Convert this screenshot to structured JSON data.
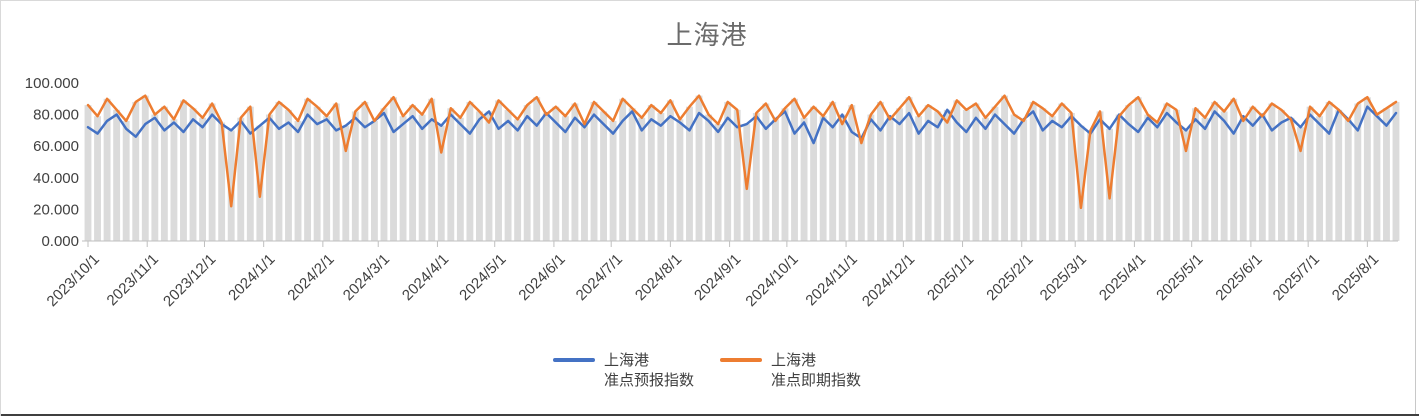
{
  "title": "上海港",
  "colors": {
    "forecast": "#4472C4",
    "spot": "#ED7D31",
    "background_bar": "#DBDBDB",
    "axis": "#BFBFBF",
    "axis_text": "#404040",
    "title_text": "#6b6b6b"
  },
  "legend": {
    "items": [
      {
        "label": "上海港\n准点预报指数",
        "color": "#4472C4"
      },
      {
        "label": "上海港\n准点即期指数",
        "color": "#ED7D31"
      }
    ]
  },
  "y_axis": {
    "tick_labels": [
      "0.000",
      "20.000",
      "40.000",
      "60.000",
      "80.000",
      "100.000"
    ],
    "tick_values": [
      0,
      20,
      40,
      60,
      80,
      100
    ]
  },
  "x_axis": {
    "tick_labels": [
      "2023/10/1",
      "2023/11/1",
      "2023/12/1",
      "2024/1/1",
      "2024/2/1",
      "2024/3/1",
      "2024/4/1",
      "2024/5/1",
      "2024/6/1",
      "2024/7/1",
      "2024/8/1",
      "2024/9/1",
      "2024/10/1",
      "2024/11/1",
      "2024/12/1",
      "2025/1/1",
      "2025/2/1",
      "2025/3/1",
      "2025/4/1",
      "2025/5/1",
      "2025/6/1",
      "2025/7/1",
      "2025/8/1"
    ]
  },
  "chart_data": {
    "type": "line",
    "title": "上海港",
    "xlabel": "",
    "ylabel": "",
    "ylim": [
      0,
      100
    ],
    "grid": "vertical-drop-bars",
    "legend_position": "bottom",
    "x_start_date": "2023/10/1",
    "x_interval_days": 5,
    "point_count": 138,
    "x_tick_labels": [
      "2023/10/1",
      "2023/11/1",
      "2023/12/1",
      "2024/1/1",
      "2024/2/1",
      "2024/3/1",
      "2024/4/1",
      "2024/5/1",
      "2024/6/1",
      "2024/7/1",
      "2024/8/1",
      "2024/9/1",
      "2024/10/1",
      "2024/11/1",
      "2024/12/1",
      "2025/1/1",
      "2025/2/1",
      "2025/3/1",
      "2025/4/1",
      "2025/5/1",
      "2025/6/1",
      "2025/7/1",
      "2025/8/1"
    ],
    "y_tick_labels": [
      "0.000",
      "20.000",
      "40.000",
      "60.000",
      "80.000",
      "100.000"
    ],
    "series": [
      {
        "name": "上海港准点预报指数",
        "color": "#4472C4",
        "values": [
          72,
          68,
          76,
          80,
          71,
          66,
          74,
          78,
          70,
          75,
          69,
          77,
          72,
          80,
          74,
          70,
          76,
          68,
          73,
          78,
          71,
          75,
          69,
          80,
          74,
          77,
          70,
          73,
          78,
          72,
          76,
          81,
          69,
          74,
          79,
          71,
          77,
          73,
          80,
          74,
          68,
          77,
          82,
          71,
          76,
          70,
          79,
          73,
          81,
          75,
          69,
          78,
          72,
          80,
          74,
          68,
          76,
          82,
          70,
          77,
          73,
          79,
          75,
          70,
          81,
          76,
          69,
          78,
          72,
          74,
          79,
          71,
          77,
          82,
          68,
          75,
          62,
          78,
          72,
          80,
          69,
          65,
          77,
          70,
          79,
          74,
          81,
          68,
          76,
          72,
          83,
          75,
          69,
          78,
          71,
          80,
          74,
          68,
          77,
          82,
          70,
          76,
          72,
          79,
          73,
          68,
          77,
          71,
          80,
          74,
          69,
          78,
          72,
          81,
          75,
          70,
          77,
          71,
          82,
          76,
          68,
          79,
          73,
          80,
          70,
          75,
          78,
          72,
          80,
          74,
          68,
          83,
          77,
          70,
          85,
          79,
          73,
          81
        ]
      },
      {
        "name": "上海港准点即期指数",
        "color": "#ED7D31",
        "values": [
          86,
          79,
          90,
          83,
          76,
          88,
          92,
          80,
          85,
          77,
          89,
          84,
          78,
          87,
          75,
          22,
          78,
          85,
          28,
          80,
          88,
          83,
          76,
          90,
          85,
          79,
          87,
          57,
          82,
          88,
          76,
          84,
          91,
          79,
          86,
          80,
          90,
          56,
          84,
          78,
          88,
          82,
          75,
          89,
          83,
          77,
          86,
          91,
          80,
          85,
          79,
          87,
          74,
          88,
          82,
          76,
          90,
          84,
          78,
          86,
          81,
          89,
          77,
          85,
          92,
          80,
          74,
          88,
          83,
          33,
          81,
          87,
          76,
          84,
          90,
          78,
          85,
          79,
          88,
          74,
          86,
          62,
          80,
          88,
          77,
          84,
          91,
          79,
          86,
          82,
          75,
          89,
          83,
          87,
          78,
          85,
          92,
          80,
          76,
          88,
          84,
          79,
          87,
          81,
          21,
          70,
          82,
          27,
          79,
          86,
          91,
          80,
          75,
          87,
          83,
          57,
          84,
          78,
          88,
          82,
          90,
          76,
          85,
          79,
          87,
          83,
          77,
          57,
          85,
          79,
          88,
          83,
          76,
          87,
          91,
          80,
          84,
          88
        ]
      }
    ]
  }
}
